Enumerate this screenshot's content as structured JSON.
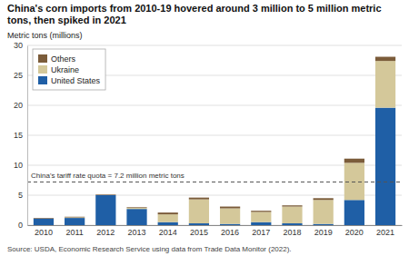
{
  "chart_data": {
    "type": "bar",
    "stacked": true,
    "title": "China's corn imports from 2010-19 hovered around 3 million to 5 million metric tons, then spiked in 2021",
    "ylabel": "Metric tons (millions)",
    "source": "Source: USDA, Economic Research Service using data from Trade Data Monitor (2022).",
    "categories": [
      "2010",
      "2011",
      "2012",
      "2013",
      "2014",
      "2015",
      "2016",
      "2017",
      "2018",
      "2019",
      "2020",
      "2021"
    ],
    "series": [
      {
        "name": "United States",
        "color": "#1f5fa6",
        "values": [
          1.1,
          1.2,
          5.0,
          2.7,
          0.5,
          0.3,
          0.2,
          0.5,
          0.3,
          0.2,
          4.2,
          19.6
        ]
      },
      {
        "name": "Ukraine",
        "color": "#d4c89a",
        "values": [
          0.0,
          0.1,
          0.0,
          0.2,
          1.3,
          4.0,
          2.6,
          1.7,
          2.8,
          4.0,
          6.2,
          7.8
        ]
      },
      {
        "name": "Others",
        "color": "#7b5c3a",
        "values": [
          0.1,
          0.1,
          0.1,
          0.1,
          0.3,
          0.3,
          0.3,
          0.2,
          0.2,
          0.3,
          0.7,
          0.7
        ]
      }
    ],
    "annotations": [
      {
        "text": "China's tariff rate quota = 7.2 million metric tons",
        "y": 7.2
      }
    ],
    "ylim": [
      0,
      30
    ],
    "yticks": [
      0,
      5,
      10,
      15,
      20,
      25,
      30
    ],
    "grid": true,
    "legend": "upper left"
  }
}
